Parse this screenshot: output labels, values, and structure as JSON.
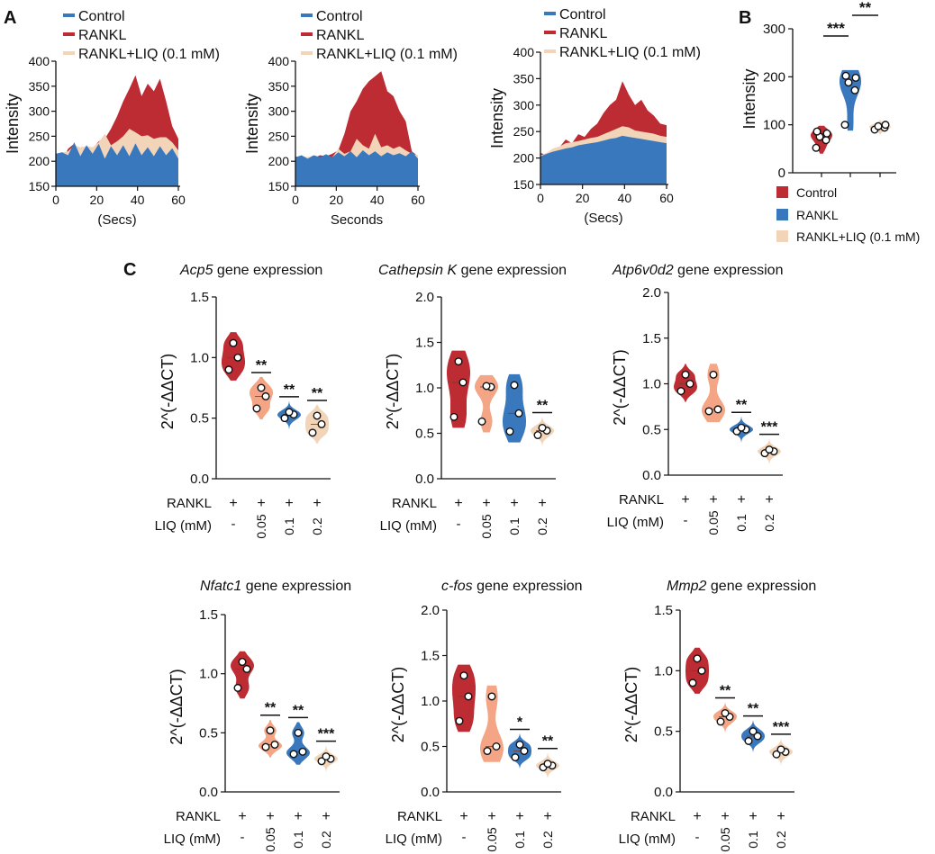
{
  "colors": {
    "control_blue": "#3a78bd",
    "rankl_red": "#bd2b33",
    "liq_beige": "#f2d4b8",
    "salmon": "#f3a585",
    "axis": "#111111"
  },
  "panels": {
    "A": "A",
    "B": "B",
    "C": "C"
  },
  "chart_data": [
    {
      "id": "A1",
      "type": "area",
      "legend": [
        "Control",
        "RANKL",
        "RANKL+LIQ (0.1 mM)"
      ],
      "ylabel": "Intensity",
      "xlabel": "(Secs)",
      "ylim": [
        150,
        400
      ],
      "yticks": [
        150,
        200,
        250,
        300,
        350,
        400
      ],
      "xlim": [
        0,
        60
      ],
      "xticks": [
        0,
        20,
        40,
        60
      ],
      "x": [
        0,
        3,
        6,
        9,
        12,
        15,
        18,
        21,
        24,
        27,
        30,
        33,
        36,
        39,
        42,
        45,
        48,
        51,
        54,
        57,
        60
      ],
      "series": [
        {
          "name": "RANKL",
          "values": [
            210,
            200,
            225,
            235,
            220,
            228,
            225,
            240,
            245,
            265,
            290,
            320,
            345,
            372,
            330,
            355,
            340,
            365,
            320,
            270,
            245
          ]
        },
        {
          "name": "RANKL+LIQ (0.1 mM)",
          "values": [
            215,
            218,
            220,
            232,
            228,
            230,
            228,
            238,
            255,
            232,
            240,
            250,
            265,
            258,
            250,
            252,
            245,
            248,
            248,
            238,
            222
          ]
        },
        {
          "name": "Control",
          "values": [
            215,
            218,
            212,
            238,
            210,
            232,
            215,
            235,
            205,
            230,
            212,
            232,
            210,
            236,
            212,
            228,
            210,
            230,
            212,
            226,
            205
          ]
        }
      ]
    },
    {
      "id": "A2",
      "type": "area",
      "legend": [
        "Control",
        "RANKL",
        "RANKL+LIQ (0.1 mM)"
      ],
      "ylabel": "Intensity",
      "xlabel": "Seconds",
      "ylim": [
        150,
        400
      ],
      "yticks": [
        150,
        200,
        250,
        300,
        350,
        400
      ],
      "xlim": [
        0,
        60
      ],
      "xticks": [
        0,
        20,
        40,
        60
      ],
      "x": [
        0,
        3,
        6,
        9,
        12,
        15,
        18,
        21,
        24,
        27,
        30,
        33,
        36,
        39,
        42,
        45,
        48,
        51,
        54,
        57,
        60
      ],
      "series": [
        {
          "name": "RANKL",
          "values": [
            210,
            205,
            208,
            206,
            212,
            210,
            215,
            222,
            255,
            300,
            320,
            345,
            360,
            370,
            380,
            340,
            330,
            300,
            280,
            220,
            210
          ]
        },
        {
          "name": "RANKL+LIQ (0.1 mM)",
          "values": [
            205,
            210,
            208,
            212,
            206,
            210,
            208,
            225,
            215,
            220,
            245,
            232,
            225,
            255,
            228,
            232,
            225,
            230,
            222,
            215,
            212
          ]
        },
        {
          "name": "Control",
          "values": [
            208,
            212,
            205,
            212,
            208,
            214,
            208,
            218,
            210,
            220,
            208,
            222,
            212,
            220,
            210,
            218,
            212,
            216,
            210,
            220,
            205
          ]
        }
      ]
    },
    {
      "id": "A3",
      "type": "area",
      "legend": [
        "Control",
        "RANKL",
        "RANKL+LIQ (0.1 mM)"
      ],
      "ylabel": "Intensity",
      "xlabel": "(Secs)",
      "ylim": [
        150,
        400
      ],
      "yticks": [
        150,
        200,
        250,
        300,
        350,
        400
      ],
      "xlim": [
        0,
        60
      ],
      "xticks": [
        0,
        20,
        40,
        60
      ],
      "x": [
        0,
        3,
        6,
        9,
        12,
        15,
        18,
        21,
        24,
        27,
        30,
        33,
        36,
        39,
        42,
        45,
        48,
        51,
        54,
        57,
        60
      ],
      "series": [
        {
          "name": "RANKL",
          "values": [
            210,
            205,
            212,
            220,
            235,
            228,
            245,
            240,
            255,
            265,
            285,
            300,
            310,
            345,
            320,
            300,
            310,
            290,
            280,
            265,
            262
          ]
        },
        {
          "name": "RANKL+LIQ (0.1 mM)",
          "values": [
            205,
            210,
            218,
            222,
            228,
            230,
            232,
            235,
            238,
            240,
            245,
            250,
            255,
            260,
            258,
            252,
            250,
            248,
            246,
            242,
            240
          ]
        },
        {
          "name": "Control",
          "values": [
            203,
            208,
            212,
            215,
            218,
            220,
            224,
            226,
            228,
            230,
            233,
            236,
            238,
            242,
            240,
            238,
            236,
            234,
            232,
            230,
            228
          ]
        }
      ]
    },
    {
      "id": "B",
      "type": "violin",
      "ylabel": "Intensity",
      "ylim": [
        0,
        300
      ],
      "yticks": [
        0,
        100,
        200,
        300
      ],
      "legend": [
        "Control",
        "RANKL",
        "RANKL+LIQ (0.1 mM)"
      ],
      "groups": [
        {
          "name": "Control",
          "points": [
            52,
            68,
            75,
            82,
            86
          ]
        },
        {
          "name": "RANKL",
          "points": [
            100,
            172,
            188,
            198,
            202
          ]
        },
        {
          "name": "RANKL+LIQ (0.1 mM)",
          "points": [
            90,
            94,
            97,
            100
          ]
        }
      ],
      "significance": [
        {
          "from": 0,
          "to": 1,
          "label": "***"
        },
        {
          "from": 1,
          "to": 2,
          "label": "**"
        }
      ]
    },
    {
      "id": "C1",
      "type": "violin",
      "title_gene": "Acp5",
      "title_rest": " gene expression",
      "ylabel": "2^(-ΔΔCT)",
      "ylim": [
        0,
        1.5
      ],
      "yticks": [
        "0.0",
        "0.5",
        "1.0",
        "1.5"
      ],
      "row_labels": [
        "RANKL",
        "LIQ (mM)"
      ],
      "categories": [
        {
          "rankl": "+",
          "liq": "-"
        },
        {
          "rankl": "+",
          "liq": "0.05"
        },
        {
          "rankl": "+",
          "liq": "0.1"
        },
        {
          "rankl": "+",
          "liq": "0.2"
        }
      ],
      "groups": [
        {
          "points": [
            0.9,
            1.0,
            1.12
          ],
          "sig": ""
        },
        {
          "points": [
            0.58,
            0.68,
            0.75
          ],
          "sig": "**"
        },
        {
          "points": [
            0.5,
            0.53,
            0.55
          ],
          "sig": "**"
        },
        {
          "points": [
            0.38,
            0.45,
            0.52
          ],
          "sig": "**"
        }
      ]
    },
    {
      "id": "C2",
      "type": "violin",
      "title_gene": "Cathepsin K",
      "title_rest": " gene expression",
      "ylabel": "2^(-ΔΔCT)",
      "ylim": [
        0,
        2.0
      ],
      "yticks": [
        "0.0",
        "0.5",
        "1.0",
        "1.5",
        "2.0"
      ],
      "row_labels": [
        "RANKL",
        "LIQ (mM)"
      ],
      "categories": [
        {
          "rankl": "+",
          "liq": "-"
        },
        {
          "rankl": "+",
          "liq": "0.05"
        },
        {
          "rankl": "+",
          "liq": "0.1"
        },
        {
          "rankl": "+",
          "liq": "0.2"
        }
      ],
      "groups": [
        {
          "points": [
            0.68,
            1.06,
            1.29
          ],
          "sig": ""
        },
        {
          "points": [
            0.63,
            1.01,
            1.02
          ],
          "sig": ""
        },
        {
          "points": [
            0.52,
            0.72,
            1.03
          ],
          "sig": ""
        },
        {
          "points": [
            0.48,
            0.53,
            0.56
          ],
          "sig": "**"
        }
      ]
    },
    {
      "id": "C3",
      "type": "violin",
      "title_gene": "Atp6v0d2",
      "title_rest": " gene expression",
      "ylabel": "2^(-ΔΔCT)",
      "ylim": [
        0,
        2.0
      ],
      "yticks": [
        "0.0",
        "0.5",
        "1.0",
        "1.5",
        "2.0"
      ],
      "row_labels": [
        "RANKL",
        "LIQ (mM)"
      ],
      "categories": [
        {
          "rankl": "+",
          "liq": "-"
        },
        {
          "rankl": "+",
          "liq": "0.05"
        },
        {
          "rankl": "+",
          "liq": "0.1"
        },
        {
          "rankl": "+",
          "liq": "0.2"
        }
      ],
      "groups": [
        {
          "points": [
            0.92,
            1.0,
            1.1
          ],
          "sig": ""
        },
        {
          "points": [
            0.7,
            0.72,
            1.1
          ],
          "sig": ""
        },
        {
          "points": [
            0.48,
            0.5,
            0.52
          ],
          "sig": "**"
        },
        {
          "points": [
            0.24,
            0.26,
            0.28
          ],
          "sig": "***"
        }
      ]
    },
    {
      "id": "C4",
      "type": "violin",
      "title_gene": "Nfatc1",
      "title_rest": " gene expression",
      "ylabel": "2^(-ΔΔCT)",
      "ylim": [
        0,
        1.5
      ],
      "yticks": [
        "0.0",
        "0.5",
        "1.0",
        "1.5"
      ],
      "row_labels": [
        "RANKL",
        "LIQ (mM)"
      ],
      "categories": [
        {
          "rankl": "+",
          "liq": "-"
        },
        {
          "rankl": "+",
          "liq": "0.05"
        },
        {
          "rankl": "+",
          "liq": "0.1"
        },
        {
          "rankl": "+",
          "liq": "0.2"
        }
      ],
      "groups": [
        {
          "points": [
            0.88,
            1.04,
            1.1
          ],
          "sig": ""
        },
        {
          "points": [
            0.38,
            0.4,
            0.52
          ],
          "sig": "**"
        },
        {
          "points": [
            0.32,
            0.34,
            0.5
          ],
          "sig": "**"
        },
        {
          "points": [
            0.26,
            0.28,
            0.3
          ],
          "sig": "***"
        }
      ]
    },
    {
      "id": "C5",
      "type": "violin",
      "title_gene": "c-fos",
      "title_rest": " gene expression",
      "ylabel": "2^(-ΔΔCT)",
      "ylim": [
        0,
        2.0
      ],
      "yticks": [
        "0.0",
        "0.5",
        "1.0",
        "1.5",
        "2.0"
      ],
      "row_labels": [
        "RANKL",
        "LIQ (mM)"
      ],
      "categories": [
        {
          "rankl": "+",
          "liq": "-"
        },
        {
          "rankl": "+",
          "liq": "0.05"
        },
        {
          "rankl": "+",
          "liq": "0.1"
        },
        {
          "rankl": "+",
          "liq": "0.2"
        }
      ],
      "groups": [
        {
          "points": [
            0.78,
            1.05,
            1.28
          ],
          "sig": ""
        },
        {
          "points": [
            0.45,
            0.5,
            1.05
          ],
          "sig": ""
        },
        {
          "points": [
            0.38,
            0.45,
            0.52
          ],
          "sig": "*"
        },
        {
          "points": [
            0.27,
            0.29,
            0.31
          ],
          "sig": "**"
        }
      ]
    },
    {
      "id": "C6",
      "type": "violin",
      "title_gene": "Mmp2",
      "title_rest": " gene expression",
      "ylabel": "2^(-ΔΔCT)",
      "ylim": [
        0,
        1.5
      ],
      "yticks": [
        "0.0",
        "0.5",
        "1.0",
        "1.5"
      ],
      "row_labels": [
        "RANKL",
        "LIQ (mM)"
      ],
      "categories": [
        {
          "rankl": "+",
          "liq": "-"
        },
        {
          "rankl": "+",
          "liq": "0.05"
        },
        {
          "rankl": "+",
          "liq": "0.1"
        },
        {
          "rankl": "+",
          "liq": "0.2"
        }
      ],
      "groups": [
        {
          "points": [
            0.9,
            1.0,
            1.1
          ],
          "sig": ""
        },
        {
          "points": [
            0.58,
            0.62,
            0.65
          ],
          "sig": "**"
        },
        {
          "points": [
            0.42,
            0.46,
            0.5
          ],
          "sig": "**"
        },
        {
          "points": [
            0.31,
            0.33,
            0.35
          ],
          "sig": "***"
        }
      ]
    }
  ]
}
